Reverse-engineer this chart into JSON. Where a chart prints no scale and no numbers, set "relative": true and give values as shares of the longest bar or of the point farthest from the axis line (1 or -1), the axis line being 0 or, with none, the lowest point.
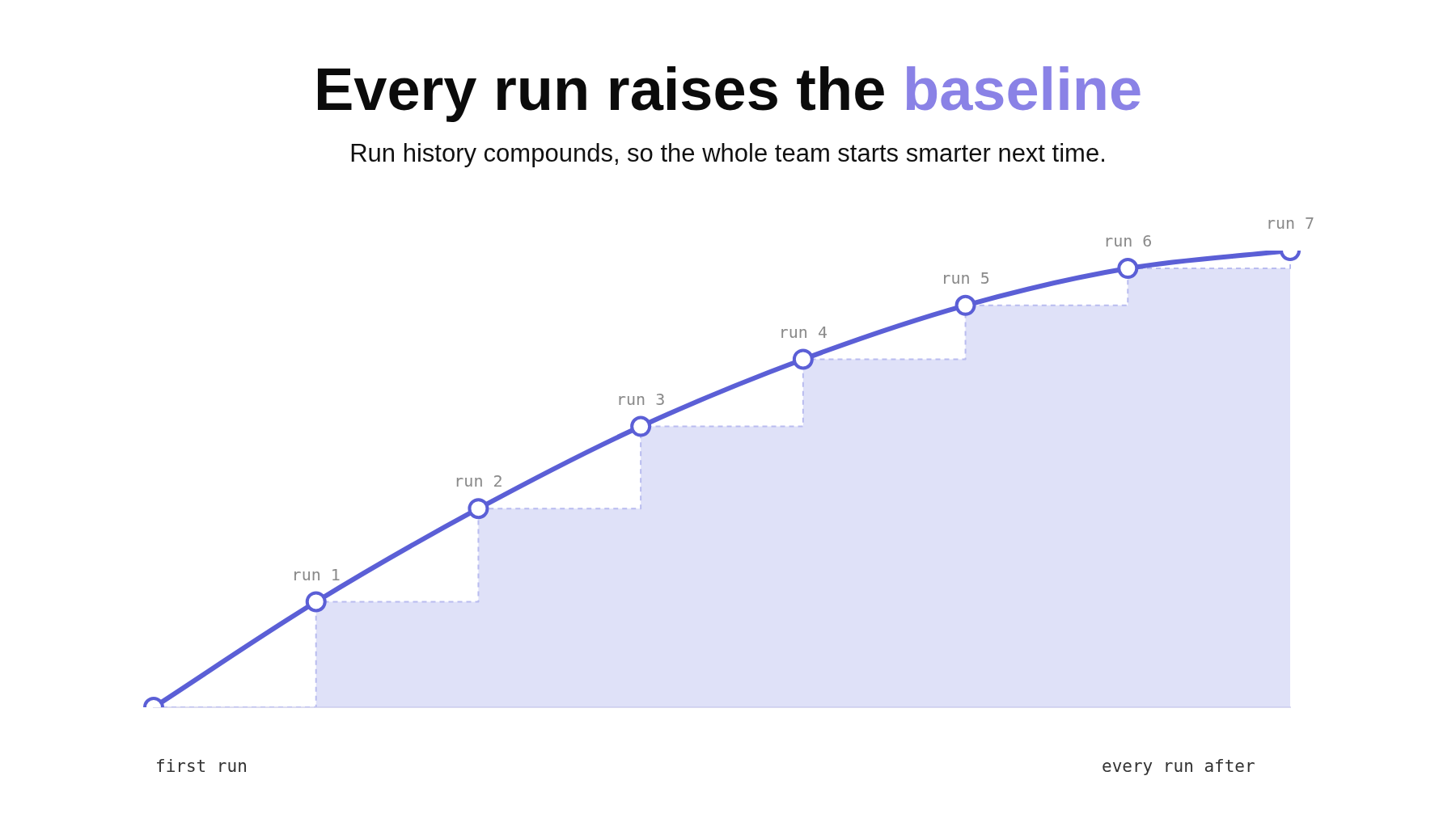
{
  "chart_data": {
    "type": "line",
    "title": "Every run raises the baseline",
    "subtitle": "Run history compounds, so the whole team starts smarter next time.",
    "categories": [
      null,
      "run 1",
      "run 2",
      "run 3",
      "run 4",
      "run 5",
      "run 6",
      "run 7"
    ],
    "relative": true,
    "grid": false,
    "legend": false,
    "series": [
      {
        "type": "step",
        "color": "#b9bcef",
        "values": [
          0,
          0.231,
          0.435,
          0.615,
          0.762,
          0.88,
          0.961,
          1
        ],
        "line_style": "dashed",
        "marker": "none"
      },
      {
        "color": "#5b5fd6",
        "values": [
          0,
          0.231,
          0.435,
          0.615,
          0.762,
          0.88,
          0.961,
          1
        ],
        "marker": "circle"
      }
    ],
    "annotations": [
      "first run",
      "every run after"
    ]
  }
}
